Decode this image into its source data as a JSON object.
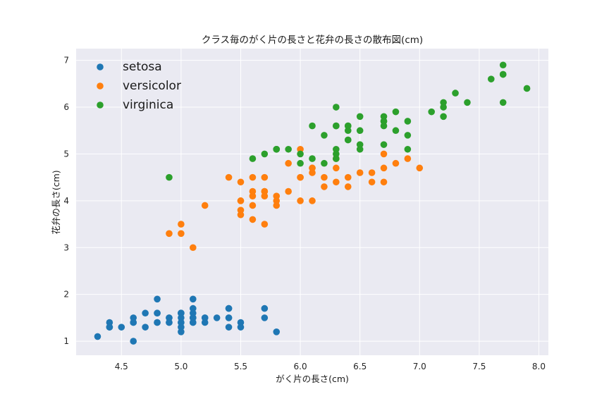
{
  "chart_data": {
    "type": "scatter",
    "title": "クラス毎のがく片の長さと花弁の長さの散布図(cm)",
    "xlabel": "がく片の長さ(cm)",
    "ylabel": "花弁の長さ(cm)",
    "xlim": [
      4.12,
      8.08
    ],
    "ylim": [
      0.7,
      7.25
    ],
    "xticks": [
      "4.5",
      "5.0",
      "5.5",
      "6.0",
      "6.5",
      "7.0",
      "7.5",
      "8.0"
    ],
    "yticks": [
      "1",
      "2",
      "3",
      "4",
      "5",
      "6",
      "7"
    ],
    "grid": true,
    "legend_position": "top-left",
    "series": [
      {
        "name": "setosa",
        "color": "#1f77b4",
        "x": [
          5.1,
          4.9,
          4.7,
          4.6,
          5.0,
          5.4,
          4.6,
          5.0,
          4.4,
          4.9,
          5.4,
          4.8,
          4.8,
          4.3,
          5.8,
          5.7,
          5.4,
          5.1,
          5.7,
          5.1,
          5.4,
          5.1,
          4.6,
          5.1,
          4.8,
          5.0,
          5.0,
          5.2,
          5.2,
          4.7,
          4.8,
          5.4,
          5.2,
          5.5,
          4.9,
          5.0,
          5.5,
          4.9,
          4.4,
          5.1,
          5.0,
          4.5,
          4.4,
          5.0,
          5.1,
          4.8,
          5.1,
          4.6,
          5.3,
          5.0
        ],
        "y": [
          1.4,
          1.4,
          1.3,
          1.5,
          1.4,
          1.7,
          1.4,
          1.5,
          1.4,
          1.5,
          1.5,
          1.6,
          1.4,
          1.1,
          1.2,
          1.5,
          1.3,
          1.4,
          1.7,
          1.5,
          1.7,
          1.5,
          1.0,
          1.7,
          1.9,
          1.6,
          1.6,
          1.5,
          1.4,
          1.6,
          1.6,
          1.5,
          1.5,
          1.4,
          1.5,
          1.2,
          1.3,
          1.4,
          1.3,
          1.5,
          1.3,
          1.3,
          1.3,
          1.6,
          1.9,
          1.4,
          1.6,
          1.4,
          1.5,
          1.4
        ]
      },
      {
        "name": "versicolor",
        "color": "#ff7f0e",
        "x": [
          7.0,
          6.4,
          6.9,
          5.5,
          6.5,
          5.7,
          6.3,
          4.9,
          6.6,
          5.2,
          5.0,
          5.9,
          6.0,
          6.1,
          5.6,
          6.7,
          5.6,
          5.8,
          6.2,
          5.6,
          5.9,
          6.1,
          6.3,
          6.1,
          6.4,
          6.6,
          6.8,
          6.7,
          6.0,
          5.7,
          5.5,
          5.5,
          5.8,
          6.0,
          5.4,
          6.0,
          6.7,
          6.3,
          5.6,
          5.5,
          5.5,
          6.1,
          5.8,
          5.0,
          5.6,
          5.7,
          5.7,
          6.2,
          5.1,
          5.7
        ],
        "y": [
          4.7,
          4.5,
          4.9,
          4.0,
          4.6,
          4.5,
          4.7,
          3.3,
          4.6,
          3.9,
          3.5,
          4.2,
          4.0,
          4.7,
          3.6,
          4.4,
          4.5,
          4.1,
          4.5,
          3.9,
          4.8,
          4.0,
          4.9,
          4.7,
          4.3,
          4.4,
          4.8,
          5.0,
          4.5,
          3.5,
          3.8,
          3.7,
          3.9,
          5.1,
          4.5,
          4.5,
          4.7,
          4.4,
          4.1,
          4.0,
          4.4,
          4.6,
          4.0,
          3.3,
          4.2,
          4.2,
          4.2,
          4.3,
          3.0,
          4.1
        ]
      },
      {
        "name": "virginica",
        "color": "#2ca02c",
        "x": [
          6.3,
          5.8,
          7.1,
          6.3,
          6.5,
          7.6,
          4.9,
          7.3,
          6.7,
          7.2,
          6.5,
          6.4,
          6.8,
          5.7,
          5.8,
          6.4,
          6.5,
          7.7,
          7.7,
          6.0,
          6.9,
          5.6,
          7.7,
          6.3,
          6.7,
          7.2,
          6.2,
          6.1,
          6.4,
          7.2,
          7.4,
          7.9,
          6.4,
          6.3,
          6.1,
          7.7,
          6.3,
          6.4,
          6.0,
          6.9,
          6.7,
          6.9,
          5.8,
          6.8,
          6.7,
          6.7,
          6.3,
          6.5,
          6.2,
          5.9
        ],
        "y": [
          6.0,
          5.1,
          5.9,
          5.6,
          5.8,
          6.6,
          4.5,
          6.3,
          5.8,
          6.1,
          5.1,
          5.3,
          5.5,
          5.0,
          5.1,
          5.3,
          5.5,
          6.7,
          6.9,
          5.0,
          5.7,
          4.9,
          6.7,
          4.9,
          5.7,
          6.0,
          4.8,
          4.9,
          5.6,
          5.8,
          6.1,
          6.4,
          5.6,
          5.1,
          5.6,
          6.1,
          5.6,
          5.5,
          4.8,
          5.4,
          5.6,
          5.1,
          5.1,
          5.9,
          5.7,
          5.2,
          5.0,
          5.2,
          5.4,
          5.1
        ]
      }
    ]
  }
}
